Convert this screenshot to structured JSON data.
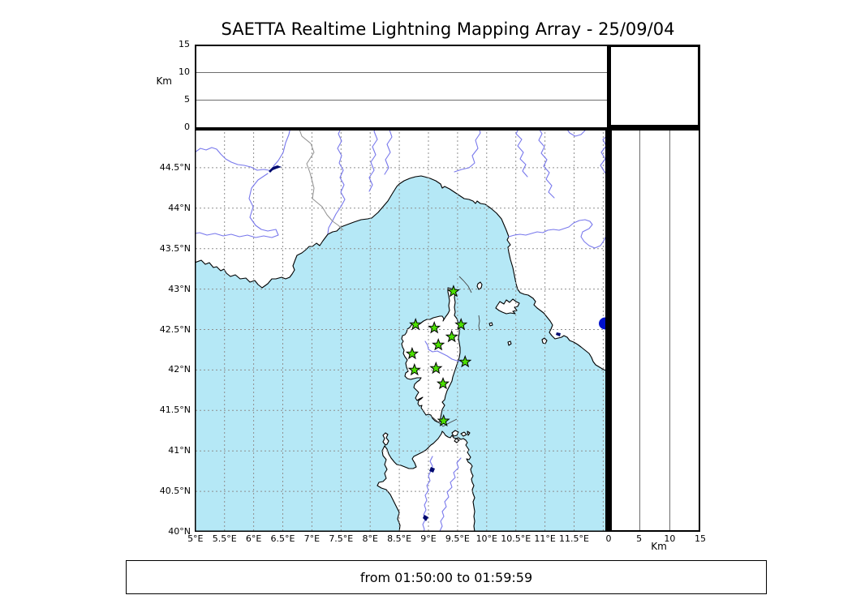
{
  "title": "SAETTA Realtime Lightning Mapping Array - 25/09/04",
  "time_range_label": "from 01:50:00 to 01:59:59",
  "colors": {
    "sea": "#b5e8f6",
    "land": "#ffffff",
    "coast": "#000000",
    "graticule": "#8f8f8f",
    "river": "#7878ec",
    "lake": "#0011cc",
    "lake_dark": "#000a70",
    "station_fill": "#4ce000",
    "station_outline": "#000000",
    "country_border": "#909090",
    "panel_grid": "#6e6e6e"
  },
  "map": {
    "extent": {
      "lon_min": 5,
      "lon_max": 12.1,
      "lat_min": 40,
      "lat_max": 45
    },
    "grid_step_deg": 0.5,
    "lon_ticks": [
      {
        "value": 5,
        "label": "5°E"
      },
      {
        "value": 5.5,
        "label": "5.5°E"
      },
      {
        "value": 6,
        "label": "6°E"
      },
      {
        "value": 6.5,
        "label": "6.5°E"
      },
      {
        "value": 7,
        "label": "7°E"
      },
      {
        "value": 7.5,
        "label": "7.5°E"
      },
      {
        "value": 8,
        "label": "8°E"
      },
      {
        "value": 8.5,
        "label": "8.5°E"
      },
      {
        "value": 9,
        "label": "9°E"
      },
      {
        "value": 9.5,
        "label": "9.5°E"
      },
      {
        "value": 10,
        "label": "10°E"
      },
      {
        "value": 10.5,
        "label": "10.5°E"
      },
      {
        "value": 11,
        "label": "11°E"
      },
      {
        "value": 11.5,
        "label": "11.5°E"
      }
    ],
    "lat_ticks": [
      {
        "value": 40,
        "label": "40°N"
      },
      {
        "value": 40.5,
        "label": "40.5°N"
      },
      {
        "value": 41,
        "label": "41°N"
      },
      {
        "value": 41.5,
        "label": "41.5°N"
      },
      {
        "value": 42,
        "label": "42°N"
      },
      {
        "value": 42.5,
        "label": "42.5°N"
      },
      {
        "value": 43,
        "label": "43°N"
      },
      {
        "value": 43.5,
        "label": "43.5°N"
      },
      {
        "value": 44,
        "label": "44°N"
      },
      {
        "value": 44.5,
        "label": "44.5°N"
      }
    ],
    "stations": [
      {
        "lon": 9.43,
        "lat": 42.97
      },
      {
        "lon": 8.78,
        "lat": 42.56
      },
      {
        "lon": 9.1,
        "lat": 42.52
      },
      {
        "lon": 9.56,
        "lat": 42.56
      },
      {
        "lon": 9.4,
        "lat": 42.41
      },
      {
        "lon": 9.17,
        "lat": 42.31
      },
      {
        "lon": 8.72,
        "lat": 42.2
      },
      {
        "lon": 9.63,
        "lat": 42.1
      },
      {
        "lon": 9.13,
        "lat": 42.02
      },
      {
        "lon": 8.76,
        "lat": 42.0
      },
      {
        "lon": 9.25,
        "lat": 41.83
      },
      {
        "lon": 9.26,
        "lat": 41.37
      }
    ]
  },
  "altitude_axis_left": {
    "unit": "Km",
    "max": 15,
    "ticks": [
      {
        "value": 0,
        "label": "0"
      },
      {
        "value": 5,
        "label": "5"
      },
      {
        "value": 10,
        "label": "10"
      },
      {
        "value": 15,
        "label": "15"
      }
    ],
    "gridline_values": [
      5,
      10
    ]
  },
  "altitude_axis_right": {
    "unit": "Km",
    "max": 15,
    "ticks": [
      {
        "value": 0,
        "label": "0"
      },
      {
        "value": 5,
        "label": "5"
      },
      {
        "value": 10,
        "label": "10"
      },
      {
        "value": 15,
        "label": "15"
      }
    ],
    "gridline_values": [
      5,
      10
    ]
  }
}
